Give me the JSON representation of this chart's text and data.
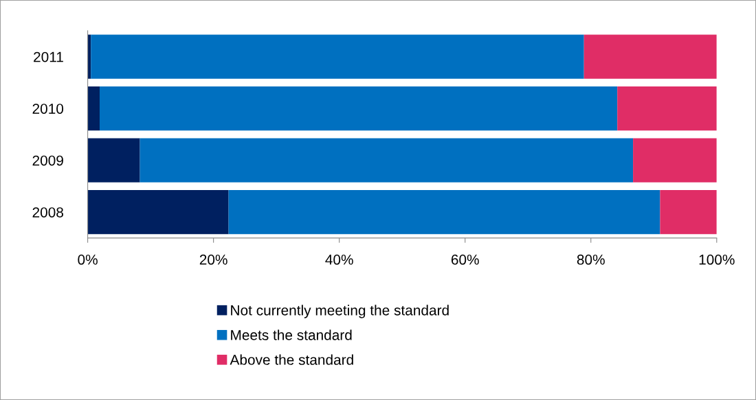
{
  "chart_data": {
    "type": "bar",
    "orientation": "horizontal",
    "stacked": true,
    "categories": [
      "2011",
      "2010",
      "2009",
      "2008"
    ],
    "series": [
      {
        "name": "Not currently meeting the standard",
        "color": "#002060",
        "values": [
          0.5,
          1.9,
          8.3,
          22.4
        ]
      },
      {
        "name": "Meets the standard",
        "color": "#0070c0",
        "values": [
          78.4,
          82.3,
          78.4,
          68.6
        ]
      },
      {
        "name": "Above the standard",
        "color": "#e02d66",
        "values": [
          21.1,
          15.8,
          13.3,
          9.0
        ]
      }
    ],
    "xlim": [
      0,
      100
    ],
    "xticks": [
      {
        "value": 0,
        "label": "0%"
      },
      {
        "value": 20,
        "label": "20%"
      },
      {
        "value": 40,
        "label": "40%"
      },
      {
        "value": 60,
        "label": "60%"
      },
      {
        "value": 80,
        "label": "80%"
      },
      {
        "value": 100,
        "label": "100%"
      }
    ],
    "grid": false,
    "legend": "bottom"
  }
}
